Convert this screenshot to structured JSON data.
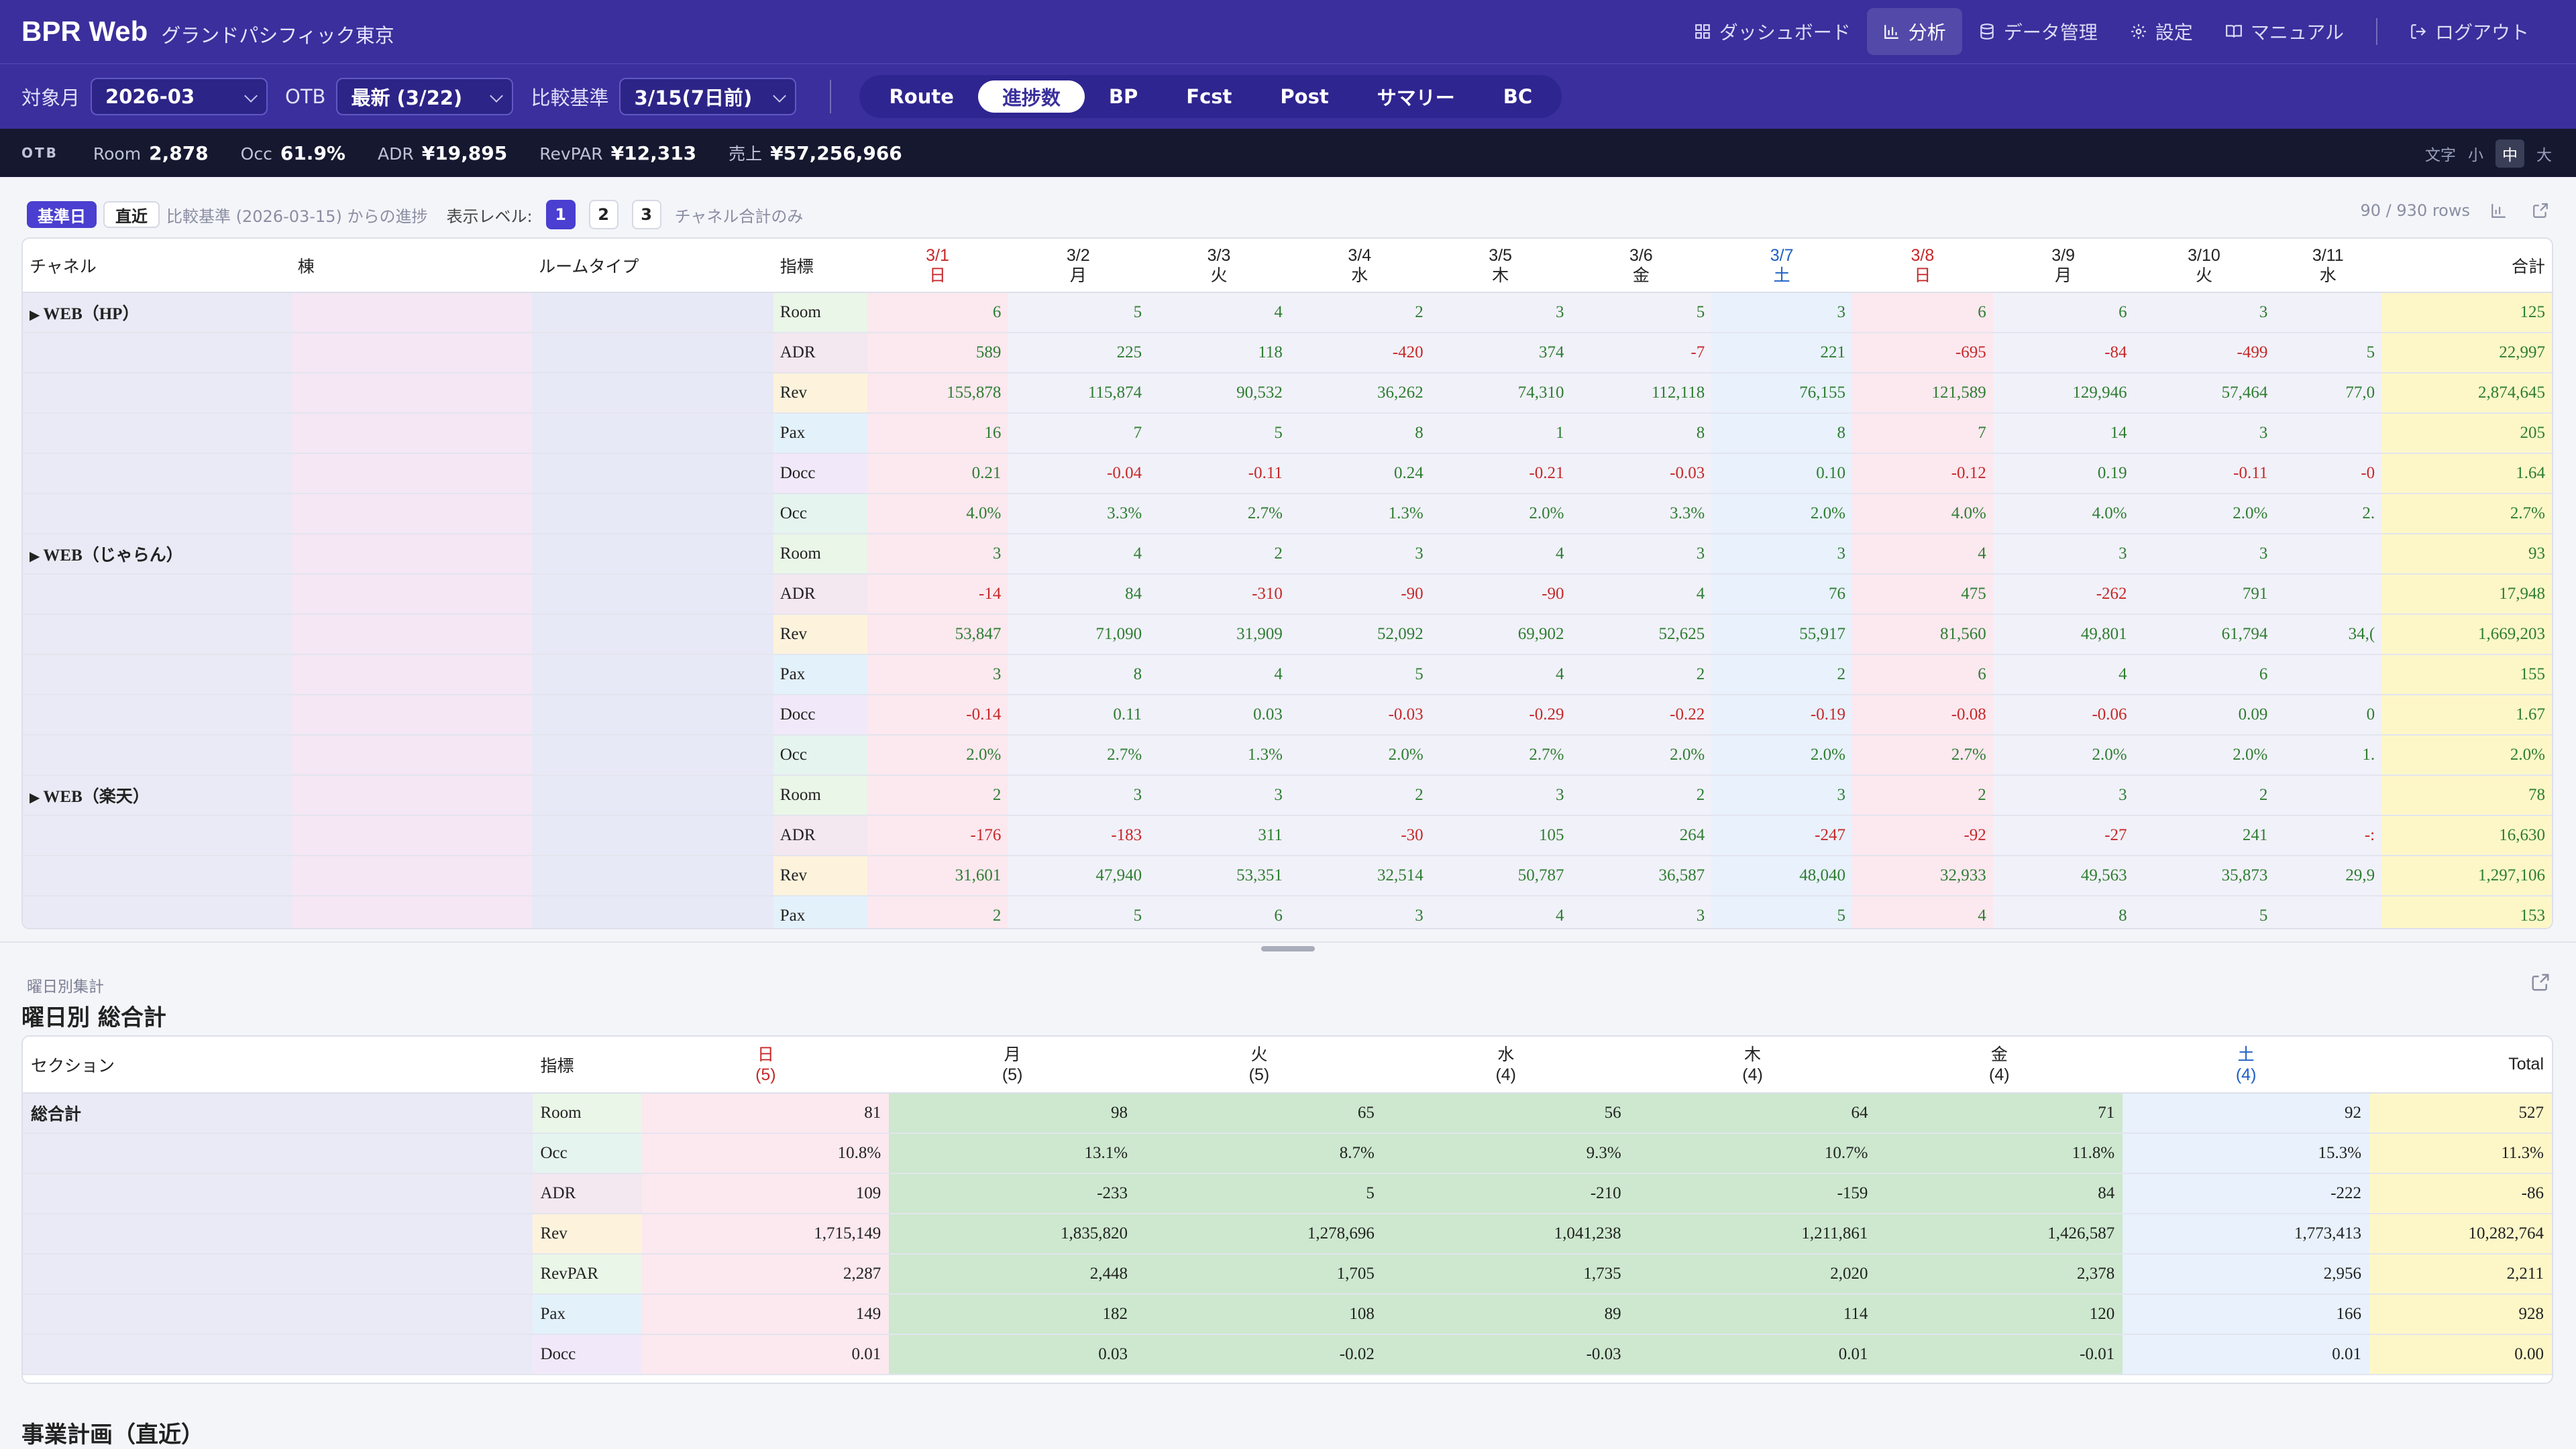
{
  "header": {
    "brand": "BPR Web",
    "hotel": "グランドパシフィック東京",
    "nav": [
      {
        "label": "ダッシュボード",
        "icon": "dashboard-icon",
        "active": false
      },
      {
        "label": "分析",
        "icon": "bar-chart-icon",
        "active": true
      },
      {
        "label": "データ管理",
        "icon": "database-icon",
        "active": false
      },
      {
        "label": "設定",
        "icon": "gear-icon",
        "active": false
      },
      {
        "label": "マニュアル",
        "icon": "book-icon",
        "active": false
      }
    ],
    "logout": "ログアウト"
  },
  "filters": {
    "target_month_label": "対象月",
    "target_month": "2026-03",
    "otb_label": "OTB",
    "otb_value": "最新 (3/22)",
    "compare_label": "比較基準",
    "compare_value": "3/15(7日前)"
  },
  "tabs": [
    {
      "label": "Route",
      "active": false
    },
    {
      "label": "進捗数",
      "active": true
    },
    {
      "label": "BP",
      "active": false
    },
    {
      "label": "Fcst",
      "active": false
    },
    {
      "label": "Post",
      "active": false
    },
    {
      "label": "サマリー",
      "active": false
    },
    {
      "label": "BC",
      "active": false
    }
  ],
  "kpi": {
    "otb": "OTB",
    "items": [
      {
        "k": "Room",
        "v": "2,878"
      },
      {
        "k": "Occ",
        "v": "61.9%"
      },
      {
        "k": "ADR",
        "v": "¥19,895"
      },
      {
        "k": "RevPAR",
        "v": "¥12,313"
      },
      {
        "k": "売上",
        "v": "¥57,256,966"
      }
    ],
    "font_label": "文字",
    "font_sizes": [
      "小",
      "中",
      "大"
    ],
    "font_selected": "中"
  },
  "toolbar": {
    "base_pill": "基準日",
    "recent_pill": "直近",
    "compare_note": "比較基準 (2026-03-15) からの進捗",
    "level_label": "表示レベル:",
    "levels": [
      "1",
      "2",
      "3"
    ],
    "level_selected": "1",
    "channel_note": "チャネル合計のみ",
    "rows": "90 / 930 rows"
  },
  "main_table": {
    "col_channel": "チャネル",
    "col_building": "棟",
    "col_roomtype": "ルームタイプ",
    "col_metric": "指標",
    "col_total": "合計",
    "dates": [
      {
        "d": "3/1",
        "w": "日",
        "type": "sun"
      },
      {
        "d": "3/2",
        "w": "月",
        "type": "wk"
      },
      {
        "d": "3/3",
        "w": "火",
        "type": "wk"
      },
      {
        "d": "3/4",
        "w": "水",
        "type": "wk"
      },
      {
        "d": "3/5",
        "w": "木",
        "type": "wk"
      },
      {
        "d": "3/6",
        "w": "金",
        "type": "wk"
      },
      {
        "d": "3/7",
        "w": "土",
        "type": "sat"
      },
      {
        "d": "3/8",
        "w": "日",
        "type": "sun"
      },
      {
        "d": "3/9",
        "w": "月",
        "type": "wk"
      },
      {
        "d": "3/10",
        "w": "火",
        "type": "wk"
      },
      {
        "d": "3/11",
        "w": "水",
        "type": "wk"
      }
    ],
    "groups": [
      {
        "channel": "WEB（HP）",
        "rows": [
          {
            "metric": "Room",
            "cls": "m-room",
            "values": [
              "6",
              "5",
              "4",
              "2",
              "3",
              "5",
              "3",
              "6",
              "6",
              "3",
              ""
            ],
            "total": "125"
          },
          {
            "metric": "ADR",
            "cls": "m-adr",
            "values": [
              "589",
              "225",
              "118",
              "-420",
              "374",
              "-7",
              "221",
              "-695",
              "-84",
              "-499",
              "5"
            ],
            "total": "22,997"
          },
          {
            "metric": "Rev",
            "cls": "m-rev",
            "values": [
              "155,878",
              "115,874",
              "90,532",
              "36,262",
              "74,310",
              "112,118",
              "76,155",
              "121,589",
              "129,946",
              "57,464",
              "77,0"
            ],
            "total": "2,874,645"
          },
          {
            "metric": "Pax",
            "cls": "m-pax",
            "values": [
              "16",
              "7",
              "5",
              "8",
              "1",
              "8",
              "8",
              "7",
              "14",
              "3",
              ""
            ],
            "total": "205"
          },
          {
            "metric": "Docc",
            "cls": "m-docc",
            "values": [
              "0.21",
              "-0.04",
              "-0.11",
              "0.24",
              "-0.21",
              "-0.03",
              "0.10",
              "-0.12",
              "0.19",
              "-0.11",
              "-0"
            ],
            "total": "1.64"
          },
          {
            "metric": "Occ",
            "cls": "m-occ",
            "values": [
              "4.0%",
              "3.3%",
              "2.7%",
              "1.3%",
              "2.0%",
              "3.3%",
              "2.0%",
              "4.0%",
              "4.0%",
              "2.0%",
              "2."
            ],
            "total": "2.7%"
          }
        ]
      },
      {
        "channel": "WEB（じゃらん）",
        "rows": [
          {
            "metric": "Room",
            "cls": "m-room",
            "values": [
              "3",
              "4",
              "2",
              "3",
              "4",
              "3",
              "3",
              "4",
              "3",
              "3",
              ""
            ],
            "total": "93"
          },
          {
            "metric": "ADR",
            "cls": "m-adr",
            "values": [
              "-14",
              "84",
              "-310",
              "-90",
              "-90",
              "4",
              "76",
              "475",
              "-262",
              "791",
              ""
            ],
            "total": "17,948"
          },
          {
            "metric": "Rev",
            "cls": "m-rev",
            "values": [
              "53,847",
              "71,090",
              "31,909",
              "52,092",
              "69,902",
              "52,625",
              "55,917",
              "81,560",
              "49,801",
              "61,794",
              "34,("
            ],
            "total": "1,669,203"
          },
          {
            "metric": "Pax",
            "cls": "m-pax",
            "values": [
              "3",
              "8",
              "4",
              "5",
              "4",
              "2",
              "2",
              "6",
              "4",
              "6",
              ""
            ],
            "total": "155"
          },
          {
            "metric": "Docc",
            "cls": "m-docc",
            "values": [
              "-0.14",
              "0.11",
              "0.03",
              "-0.03",
              "-0.29",
              "-0.22",
              "-0.19",
              "-0.08",
              "-0.06",
              "0.09",
              "0"
            ],
            "total": "1.67"
          },
          {
            "metric": "Occ",
            "cls": "m-occ",
            "values": [
              "2.0%",
              "2.7%",
              "1.3%",
              "2.0%",
              "2.7%",
              "2.0%",
              "2.0%",
              "2.7%",
              "2.0%",
              "2.0%",
              "1."
            ],
            "total": "2.0%"
          }
        ]
      },
      {
        "channel": "WEB（楽天）",
        "rows": [
          {
            "metric": "Room",
            "cls": "m-room",
            "values": [
              "2",
              "3",
              "3",
              "2",
              "3",
              "2",
              "3",
              "2",
              "3",
              "2",
              ""
            ],
            "total": "78"
          },
          {
            "metric": "ADR",
            "cls": "m-adr",
            "values": [
              "-176",
              "-183",
              "311",
              "-30",
              "105",
              "264",
              "-247",
              "-92",
              "-27",
              "241",
              "-:"
            ],
            "total": "16,630"
          },
          {
            "metric": "Rev",
            "cls": "m-rev",
            "values": [
              "31,601",
              "47,940",
              "53,351",
              "32,514",
              "50,787",
              "36,587",
              "48,040",
              "32,933",
              "49,563",
              "35,873",
              "29,9"
            ],
            "total": "1,297,106"
          },
          {
            "metric": "Pax",
            "cls": "m-pax",
            "values": [
              "2",
              "5",
              "6",
              "3",
              "4",
              "3",
              "5",
              "4",
              "8",
              "5",
              ""
            ],
            "total": "153"
          }
        ]
      }
    ]
  },
  "weekday": {
    "section_label": "曜日別集計",
    "title": "曜日別 総合計",
    "col_section": "セクション",
    "col_metric": "指標",
    "col_total": "Total",
    "days": [
      {
        "w": "日",
        "n": "(5)",
        "type": "sun"
      },
      {
        "w": "月",
        "n": "(5)",
        "type": "wk"
      },
      {
        "w": "火",
        "n": "(5)",
        "type": "wk"
      },
      {
        "w": "水",
        "n": "(4)",
        "type": "wk"
      },
      {
        "w": "木",
        "n": "(4)",
        "type": "wk"
      },
      {
        "w": "金",
        "n": "(4)",
        "type": "wk"
      },
      {
        "w": "土",
        "n": "(4)",
        "type": "sat"
      }
    ],
    "section": "総合計",
    "rows": [
      {
        "metric": "Room",
        "cls": "m-room",
        "values": [
          "81",
          "98",
          "65",
          "56",
          "64",
          "71",
          "92"
        ],
        "total": "527"
      },
      {
        "metric": "Occ",
        "cls": "m-occ",
        "values": [
          "10.8%",
          "13.1%",
          "8.7%",
          "9.3%",
          "10.7%",
          "11.8%",
          "15.3%"
        ],
        "total": "11.3%"
      },
      {
        "metric": "ADR",
        "cls": "m-adr",
        "values": [
          "109",
          "-233",
          "5",
          "-210",
          "-159",
          "84",
          "-222"
        ],
        "total": "-86"
      },
      {
        "metric": "Rev",
        "cls": "m-rev",
        "values": [
          "1,715,149",
          "1,835,820",
          "1,278,696",
          "1,041,238",
          "1,211,861",
          "1,426,587",
          "1,773,413"
        ],
        "total": "10,282,764"
      },
      {
        "metric": "RevPAR",
        "cls": "m-room",
        "values": [
          "2,287",
          "2,448",
          "1,705",
          "1,735",
          "2,020",
          "2,378",
          "2,956"
        ],
        "total": "2,211"
      },
      {
        "metric": "Pax",
        "cls": "m-pax",
        "values": [
          "149",
          "182",
          "108",
          "89",
          "114",
          "120",
          "166"
        ],
        "total": "928"
      },
      {
        "metric": "Docc",
        "cls": "m-docc",
        "values": [
          "0.01",
          "0.03",
          "-0.02",
          "-0.03",
          "0.01",
          "-0.01",
          "0.01"
        ],
        "total": "0.00"
      }
    ]
  },
  "business_plan": {
    "title": "事業計画（直近）"
  }
}
